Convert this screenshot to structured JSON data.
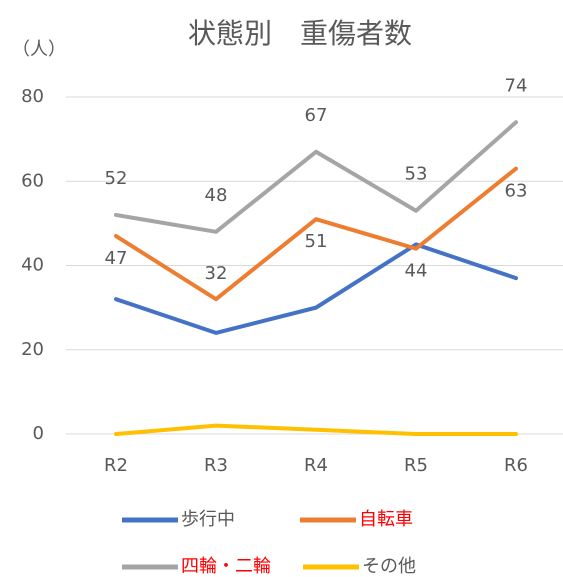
{
  "chart_data": {
    "type": "line",
    "title": "状態別　重傷者数",
    "y_label": "（人）",
    "categories": [
      "R2",
      "R3",
      "R4",
      "R5",
      "R6"
    ],
    "series": [
      {
        "name": "歩行中",
        "color": "#4472c4",
        "label_color": "#595959",
        "values": [
          32,
          24,
          30,
          45,
          37
        ]
      },
      {
        "name": "自転車",
        "color": "#ed7d31",
        "label_color": "#ff0000",
        "values": [
          47,
          32,
          51,
          44,
          63
        ],
        "show_values": true
      },
      {
        "name": "四輪・二輪",
        "color": "#a5a5a5",
        "label_color": "#ff0000",
        "values": [
          52,
          48,
          67,
          53,
          74
        ],
        "show_values": true
      },
      {
        "name": "その他",
        "color": "#ffc000",
        "label_color": "#595959",
        "values": [
          0,
          2,
          1,
          0,
          0
        ]
      }
    ],
    "ylim": [
      0,
      80
    ],
    "yticks": [
      0,
      20,
      40,
      60,
      80
    ],
    "grid": true
  }
}
